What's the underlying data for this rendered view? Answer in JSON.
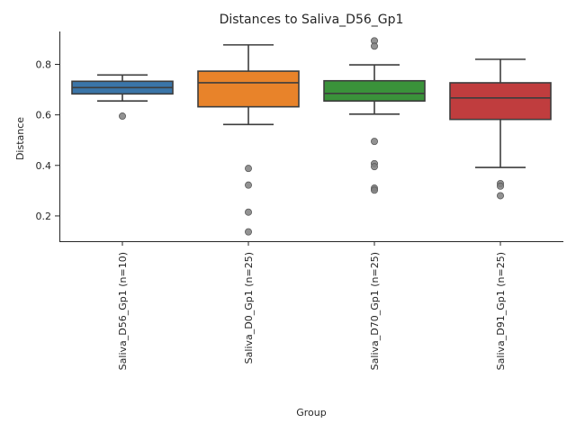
{
  "chart_data": {
    "type": "box",
    "title": "Distances to Saliva_D56_Gp1",
    "xlabel": "Group",
    "ylabel": "Distance",
    "ylim": [
      0.1,
      0.93
    ],
    "yticks": [
      0.2,
      0.4,
      0.6,
      0.8
    ],
    "ytick_labels": [
      "0.2",
      "0.4",
      "0.6",
      "0.8"
    ],
    "grid": false,
    "groups": [
      {
        "label": "Saliva_D56_Gp1 (n=10)",
        "color": "#3a75a8",
        "q1": 0.683,
        "median": 0.708,
        "q3": 0.733,
        "whisker_low": 0.655,
        "whisker_high": 0.758,
        "outliers": [
          0.595
        ]
      },
      {
        "label": "Saliva_D0_Gp1 (n=25)",
        "color": "#e8832a",
        "q1": 0.632,
        "median": 0.727,
        "q3": 0.773,
        "whisker_low": 0.562,
        "whisker_high": 0.877,
        "outliers": [
          0.388,
          0.322,
          0.215,
          0.137
        ]
      },
      {
        "label": "Saliva_D70_Gp1 (n=25)",
        "color": "#3a923a",
        "q1": 0.655,
        "median": 0.685,
        "q3": 0.735,
        "whisker_low": 0.603,
        "whisker_high": 0.798,
        "outliers": [
          0.893,
          0.872,
          0.495,
          0.407,
          0.395,
          0.31,
          0.302
        ]
      },
      {
        "label": "Saliva_D91_Gp1 (n=25)",
        "color": "#c03d3e",
        "q1": 0.582,
        "median": 0.667,
        "q3": 0.727,
        "whisker_low": 0.392,
        "whisker_high": 0.82,
        "outliers": [
          0.328,
          0.318,
          0.28
        ]
      }
    ]
  }
}
